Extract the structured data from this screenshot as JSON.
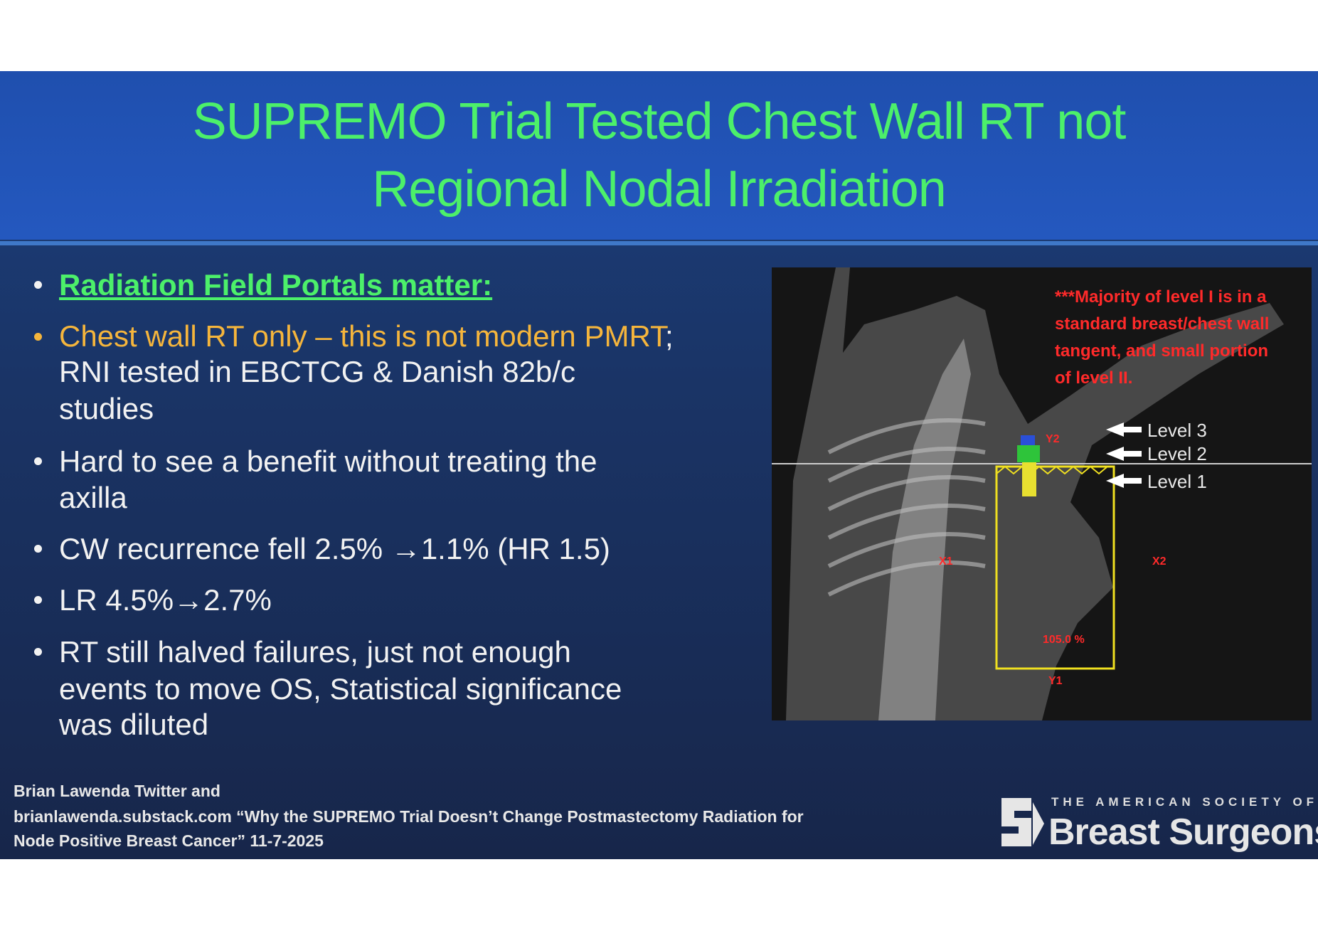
{
  "header": {
    "title": [
      "SUPREMO Trial Tested Chest Wall RT not",
      "Regional Nodal Irradiation"
    ]
  },
  "body": {
    "bullets": [
      {
        "lines": [
          "Radiation Field Portals matter:"
        ]
      },
      {
        "highlight": "Chest wall RT only – this is not modern PMRT",
        "lines": [
          ";",
          "RNI tested in EBCTCG & Danish 82b/c",
          "studies"
        ]
      },
      {
        "lines": [
          "Hard to see a benefit without treating the",
          "axilla"
        ]
      },
      {
        "lines": [
          "CW recurrence fell 2.5% →1.1% (HR 1.5)"
        ]
      },
      {
        "lines": [
          "LR 4.5%→2.7%"
        ]
      },
      {
        "lines": [
          "RT still halved failures, just not enough",
          "events to move OS, Statistical significance",
          "was diluted"
        ]
      }
    ]
  },
  "image": {
    "note": [
      "***Majority of level I is in a",
      "standard breast/chest wall",
      "tangent, and small portion",
      "of level II."
    ],
    "levels": [
      "Level 3",
      "Level 2",
      "Level 1"
    ],
    "markers": [
      "Y2",
      "X1",
      "X2",
      "105.0 %",
      "Y1"
    ]
  },
  "footer": {
    "citation": [
      "Brian Lawenda Twitter and",
      "brianlawenda.substack.com “Why the SUPREMO Trial Doesn’t Change Postmastectomy Radiation for",
      "Node Positive Breast Cancer” 11-7-2025"
    ],
    "logo": [
      "THE AMERICAN SOCIETY OF",
      "Breast Surgeons"
    ]
  }
}
